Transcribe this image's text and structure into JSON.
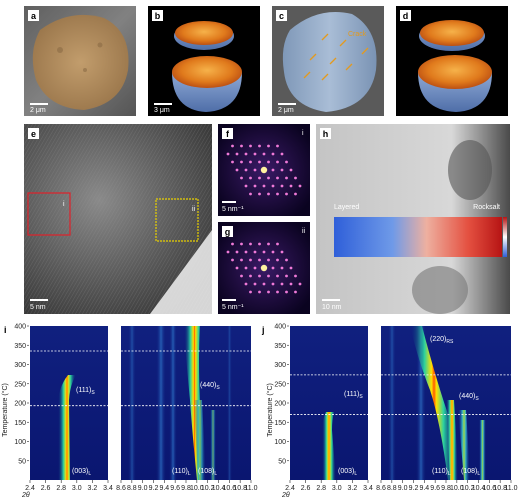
{
  "panels": {
    "a": {
      "label": "a",
      "scale": "2 μm"
    },
    "b": {
      "label": "b",
      "scale": "3 μm"
    },
    "c": {
      "label": "c",
      "scale": "2 μm",
      "annotation": "Crack"
    },
    "d": {
      "label": "d",
      "scale": "3 μm"
    },
    "e": {
      "label": "e",
      "scale": "5 nm",
      "box1": "i",
      "box2": "ii"
    },
    "f": {
      "label": "f",
      "scale": "5 nm⁻¹",
      "roman": "i"
    },
    "g": {
      "label": "g",
      "scale": "5 nm⁻¹",
      "roman": "ii"
    },
    "h": {
      "label": "h",
      "scale": "10 nm",
      "left": "Layered",
      "right": "Rocksalt"
    }
  },
  "chart_i": {
    "label": "i",
    "ylabel": "Temperature (°C)",
    "xlabel": "2θ",
    "yticks": [
      "50",
      "100",
      "150",
      "200",
      "250",
      "300",
      "350",
      "400"
    ],
    "left_xticks": [
      "2.4",
      "2.6",
      "2.8",
      "3.0",
      "3.2",
      "3.4"
    ],
    "right_xticks": [
      "8.6",
      "8.8",
      "9.0",
      "9.2",
      "9.4",
      "9.6",
      "9.8",
      "10.0",
      "10.2",
      "10.4",
      "10.6",
      "10.8",
      "11.0"
    ],
    "dashed_temps": [
      193,
      335
    ],
    "peaks": {
      "p003": "(003)",
      "p003_sub": "L",
      "p111": "(111)",
      "p111_sub": "S",
      "p440": "(440)",
      "p440_sub": "S",
      "p110": "(110)",
      "p110_sub": "L",
      "p108": "(108)",
      "p108_sub": "L"
    }
  },
  "chart_j": {
    "label": "j",
    "ylabel": "Temperature (°C)",
    "xlabel": "2θ",
    "yticks": [
      "50",
      "100",
      "150",
      "200",
      "250",
      "300",
      "350",
      "400"
    ],
    "left_xticks": [
      "2.4",
      "2.6",
      "2.8",
      "3.0",
      "3.2",
      "3.4"
    ],
    "right_xticks": [
      "8.6",
      "8.8",
      "9.0",
      "9.2",
      "9.4",
      "9.6",
      "9.8",
      "10.0",
      "10.2",
      "10.4",
      "10.6",
      "10.8",
      "11.0"
    ],
    "dashed_temps": [
      170,
      273
    ],
    "peaks": {
      "p003": "(003)",
      "p003_sub": "L",
      "p111": "(111)",
      "p111_sub": "S",
      "p440": "(440)",
      "p440_sub": "S",
      "p220": "(220)",
      "p220_sub": "RS",
      "p110": "(110)",
      "p110_sub": "L",
      "p108": "(108)",
      "p108_sub": "L"
    }
  },
  "colors": {
    "background": "#0b1a7a",
    "layered_low": "#2a5bd7",
    "rocksalt_high": "#c81a1a",
    "peak_hot": "#ffe000",
    "box_red": "#e0212a",
    "box_yellow": "#e8d000",
    "dashed": "#ffffff"
  }
}
